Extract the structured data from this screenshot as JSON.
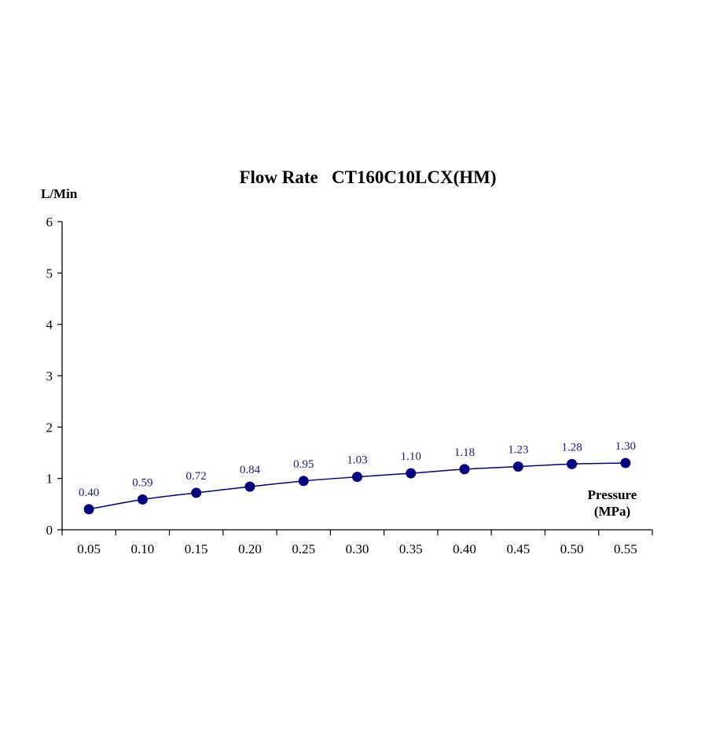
{
  "chart_data": {
    "type": "line",
    "title": "Flow Rate   CT160C10LCX(HM)",
    "ylabel": "L/Min",
    "xlabel_line1": "Pressure",
    "xlabel_line2": "(MPa)",
    "ylim": [
      0,
      6
    ],
    "yticks": [
      "0",
      "1",
      "2",
      "3",
      "4",
      "5",
      "6"
    ],
    "categories": [
      "0.05",
      "0.10",
      "0.15",
      "0.20",
      "0.25",
      "0.30",
      "0.35",
      "0.40",
      "0.45",
      "0.50",
      "0.55"
    ],
    "series": [
      {
        "values": [
          0.4,
          0.59,
          0.72,
          0.84,
          0.95,
          1.03,
          1.1,
          1.18,
          1.23,
          1.28,
          1.3
        ],
        "data_labels": [
          "0.40",
          "0.59",
          "0.72",
          "0.84",
          "0.95",
          "1.03",
          "1.10",
          "1.18",
          "1.23",
          "1.28",
          "1.30"
        ],
        "color": "#000080"
      }
    ],
    "grid": false,
    "axis_color": "#000000",
    "label_color": "#1a1a7a"
  }
}
